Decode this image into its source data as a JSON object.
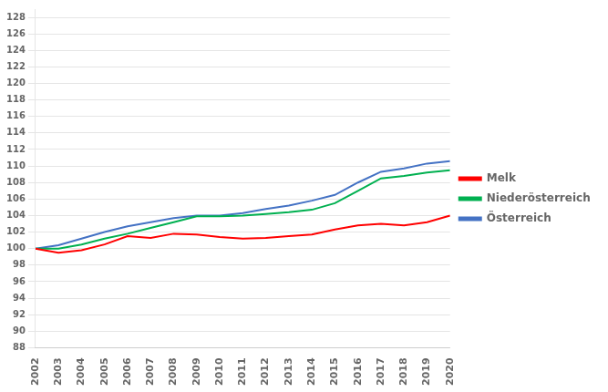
{
  "chart_data": {
    "type": "line",
    "x": [
      2002,
      2003,
      2004,
      2005,
      2006,
      2007,
      2008,
      2009,
      2010,
      2011,
      2012,
      2013,
      2014,
      2015,
      2016,
      2017,
      2018,
      2019,
      2020
    ],
    "xlim": [
      2002,
      2020
    ],
    "xticks": [
      2002,
      2003,
      2004,
      2005,
      2006,
      2007,
      2008,
      2009,
      2010,
      2011,
      2012,
      2013,
      2014,
      2015,
      2016,
      2017,
      2018,
      2019,
      2020
    ],
    "series": [
      {
        "name": "Melk",
        "color": "#ff0000",
        "values": [
          100.0,
          99.5,
          99.8,
          100.5,
          101.5,
          101.3,
          101.8,
          101.7,
          101.4,
          101.2,
          101.3,
          101.5,
          101.7,
          102.3,
          102.8,
          103.0,
          102.8,
          103.2,
          104.0
        ]
      },
      {
        "name": "Niederösterreich",
        "color": "#00b050",
        "values": [
          100.0,
          100.0,
          100.5,
          101.2,
          101.8,
          102.5,
          103.2,
          103.9,
          103.9,
          104.0,
          104.2,
          104.4,
          104.7,
          105.5,
          107.0,
          108.5,
          108.8,
          109.2,
          109.5
        ]
      },
      {
        "name": "Österreich",
        "color": "#4472c4",
        "values": [
          100.0,
          100.4,
          101.2,
          102.0,
          102.7,
          103.2,
          103.7,
          104.0,
          104.0,
          104.3,
          104.8,
          105.2,
          105.8,
          106.5,
          108.0,
          109.3,
          109.7,
          110.3,
          110.6
        ]
      }
    ],
    "ylim": [
      88,
      129
    ],
    "yticks": [
      88,
      90,
      92,
      94,
      96,
      98,
      100,
      102,
      104,
      106,
      108,
      110,
      112,
      114,
      116,
      118,
      120,
      122,
      124,
      126,
      128
    ],
    "grid": "y",
    "legend": "right"
  }
}
